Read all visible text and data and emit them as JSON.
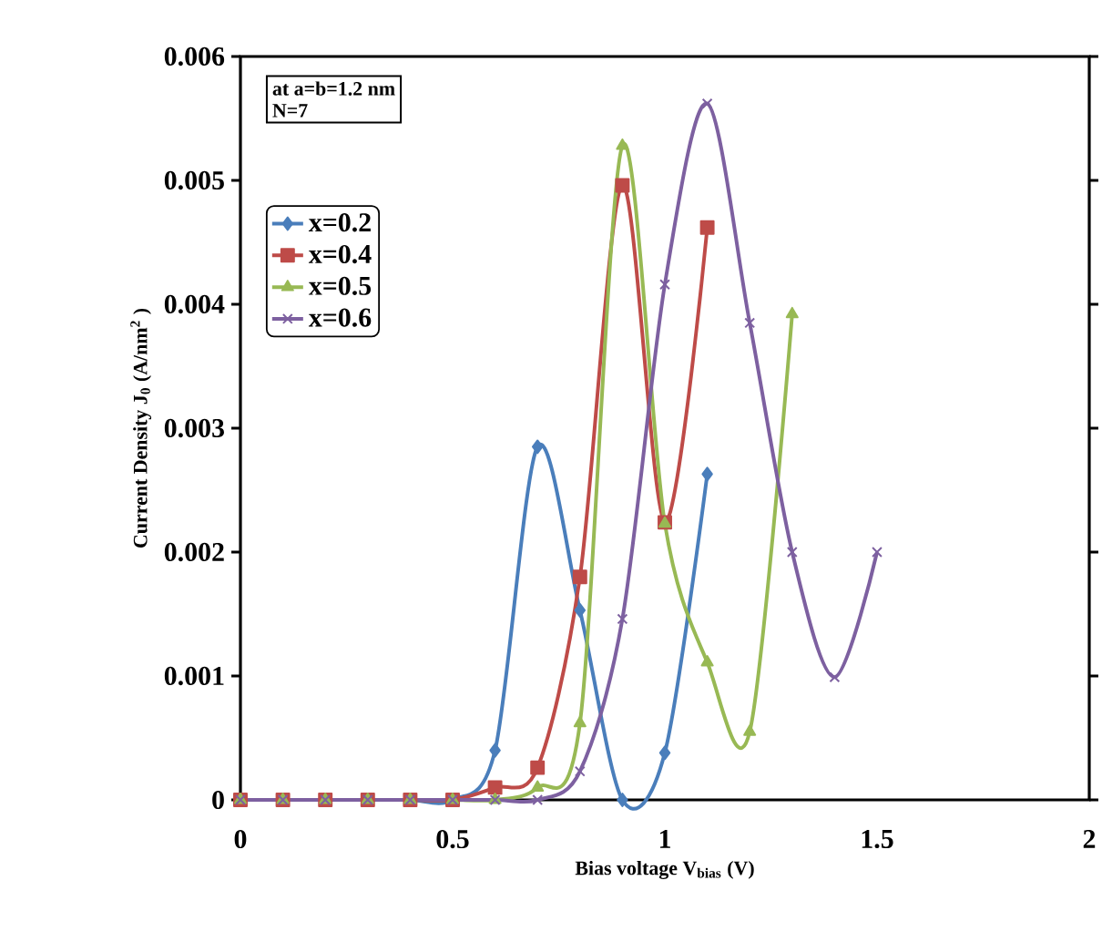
{
  "chart_data": {
    "type": "line",
    "xlabel": "Bias voltage V$_{bias}$ (V)",
    "ylabel": "Current Density J$_{0}$ (A/nm$^{2}$ )",
    "annotations": [
      "at a=b=1.2 nm",
      "N=7"
    ],
    "xlim": [
      0,
      2
    ],
    "xticks": [
      0,
      0.5,
      1,
      1.5,
      2
    ],
    "ylim": [
      0,
      0.006
    ],
    "yticks": [
      0,
      0.001,
      0.002,
      0.003,
      0.004,
      0.005,
      0.006
    ],
    "legend": "top left",
    "grid": false,
    "series": [
      {
        "name": "x=0.2",
        "color": "#4a7ebb",
        "marker": "diamond",
        "x": [
          0.3,
          0.4,
          0.5,
          0.6,
          0.7,
          0.8,
          0.9,
          1.0,
          1.1
        ],
        "values": [
          0,
          0,
          0,
          0.0004,
          0.00285,
          0.00153,
          0,
          0.00038,
          0.00263
        ]
      },
      {
        "name": "x=0.4",
        "color": "#be4b48",
        "marker": "square",
        "x": [
          0,
          0.1,
          0.2,
          0.3,
          0.4,
          0.5,
          0.6,
          0.7,
          0.8,
          0.9,
          1.0,
          1.1
        ],
        "values": [
          0,
          0,
          0,
          0,
          0,
          0,
          0.0001,
          0.00026,
          0.0018,
          0.00496,
          0.00224,
          0.00462
        ]
      },
      {
        "name": "x=0.5",
        "color": "#98b954",
        "marker": "triangle",
        "x": [
          0,
          0.1,
          0.2,
          0.3,
          0.4,
          0.5,
          0.6,
          0.7,
          0.8,
          0.9,
          1.0,
          1.1,
          1.2,
          1.3
        ],
        "values": [
          0,
          0,
          0,
          0,
          0,
          0,
          0,
          0.0001,
          0.00062,
          0.00528,
          0.00223,
          0.00111,
          0.00055,
          0.00392
        ]
      },
      {
        "name": "x=0.6",
        "color": "#7d60a0",
        "marker": "cross",
        "x": [
          0,
          0.1,
          0.2,
          0.3,
          0.4,
          0.5,
          0.6,
          0.7,
          0.8,
          0.9,
          1.0,
          1.1,
          1.2,
          1.3,
          1.4,
          1.5
        ],
        "values": [
          0,
          0,
          0,
          0,
          0,
          0,
          0,
          0,
          0.00023,
          0.00146,
          0.00416,
          0.00562,
          0.00385,
          0.002,
          0.00099,
          0.002
        ]
      }
    ]
  }
}
